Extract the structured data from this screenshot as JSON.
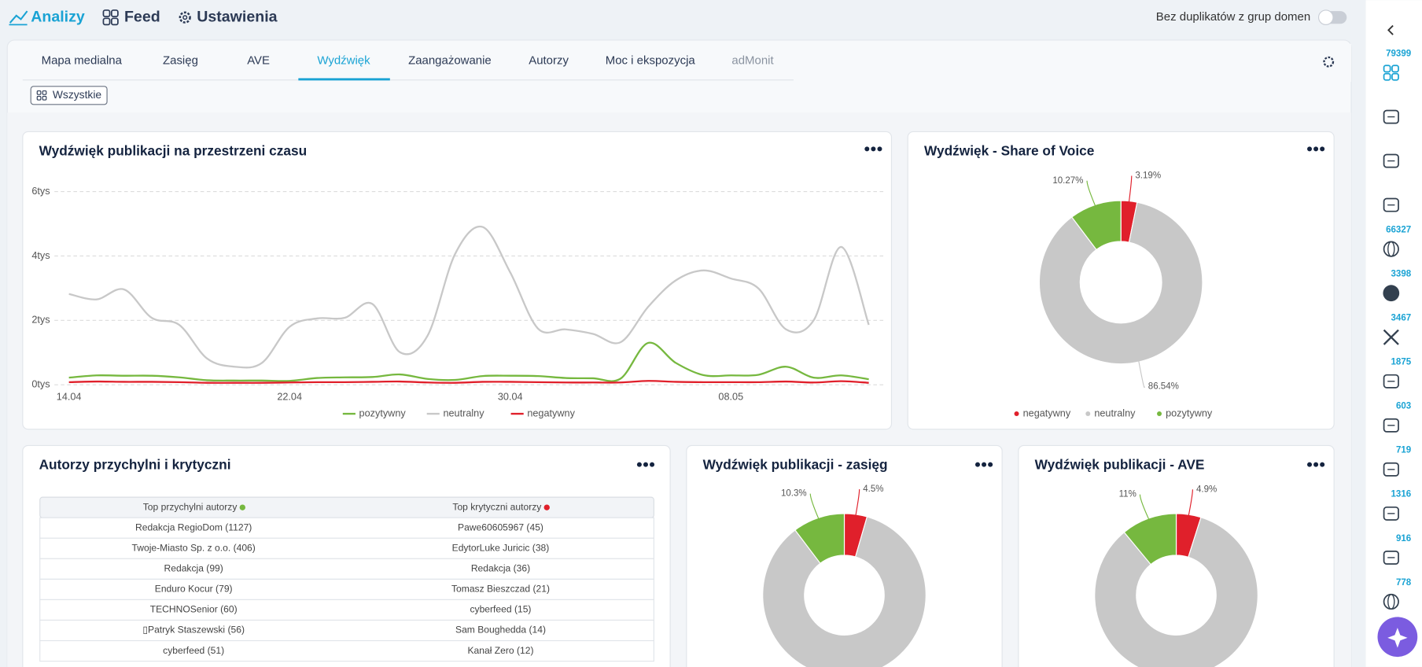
{
  "nav": {
    "items": [
      "Analizy",
      "Feed",
      "Ustawienia"
    ],
    "toggle_label": "Bez duplikatów z grup domen"
  },
  "tabs": {
    "items": [
      "Mapa medialna",
      "Zasięg",
      "AVE",
      "Wydźwięk",
      "Zaangażowanie",
      "Autorzy",
      "Moc i ekspozycja",
      "adMonit"
    ],
    "active": 3
  },
  "filter": "Wszystkie",
  "sidebar": {
    "counts": [
      79399,
      null,
      null,
      null,
      66327,
      3398,
      3467,
      1875,
      603,
      719,
      1316,
      916,
      778
    ]
  },
  "table": {
    "title": "Autorzy przychylni i krytyczni",
    "headers": [
      "Top przychylni autorzy",
      "Top krytyczni autorzy"
    ],
    "rows": [
      [
        "Redakcja RegioDom (1127)",
        "Pawe60605967 (45)"
      ],
      [
        "Twoje-Miasto Sp. z o.o. (406)",
        "EdytorLuke Juricic (38)"
      ],
      [
        "Redakcja (99)",
        "Redakcja (36)"
      ],
      [
        "Enduro Kocur  (79)",
        "Tomasz Bieszczad (21)"
      ],
      [
        "TECHNOSenior (60)",
        "cyberfeed (15)"
      ],
      [
        "▯Patryk Staszewski (56)",
        "Sam Boughedda (14)"
      ],
      [
        "cyberfeed (51)",
        "Kanał Zero (12)"
      ]
    ]
  },
  "chart_data": [
    {
      "type": "line",
      "title": "Wydźwięk publikacji na przestrzeni czasu",
      "categories": [
        "14.04",
        null,
        null,
        null,
        null,
        null,
        null,
        null,
        "22.04",
        null,
        null,
        null,
        null,
        null,
        null,
        null,
        "30.04",
        null,
        null,
        null,
        null,
        null,
        null,
        null,
        "08.05",
        null,
        null,
        null,
        null,
        null
      ],
      "series": [
        {
          "name": "pozytywny",
          "color": "#76b83f",
          "values": [
            220,
            290,
            280,
            280,
            230,
            140,
            130,
            130,
            120,
            210,
            230,
            240,
            320,
            180,
            150,
            270,
            280,
            270,
            210,
            200,
            190,
            1300,
            680,
            300,
            290,
            310,
            560,
            220,
            290,
            170
          ]
        },
        {
          "name": "neutralny",
          "color": "#c8c8c8",
          "values": [
            2820,
            2650,
            2960,
            2080,
            1860,
            820,
            560,
            680,
            1800,
            2060,
            2080,
            2510,
            1010,
            1520,
            4060,
            4900,
            3490,
            1750,
            1720,
            1580,
            1320,
            2420,
            3240,
            3550,
            3300,
            2990,
            1720,
            2000,
            4280,
            1860
          ]
        },
        {
          "name": "negatywny",
          "color": "#e0202b",
          "values": [
            80,
            100,
            90,
            90,
            80,
            60,
            60,
            60,
            70,
            80,
            80,
            90,
            100,
            70,
            60,
            90,
            90,
            80,
            70,
            70,
            70,
            120,
            90,
            80,
            80,
            80,
            100,
            70,
            110,
            60
          ]
        }
      ],
      "ylim": [
        0,
        6000
      ],
      "yticks": [
        {
          "value": 0,
          "label": "0tys"
        },
        {
          "value": 2000,
          "label": "2tys"
        },
        {
          "value": 4000,
          "label": "4tys"
        },
        {
          "value": 6000,
          "label": "6tys"
        }
      ],
      "grid": true,
      "legend": "bottom"
    },
    {
      "type": "donut",
      "title": "Wydźwięk - Share of Voice",
      "categories": [
        "negatywny",
        "neutralny",
        "pozytywny"
      ],
      "values": [
        3.19,
        86.54,
        10.27
      ],
      "value_labels": [
        "3.19%",
        "86.54%",
        "10.27%"
      ],
      "colors": [
        "#e0202b",
        "#c8c8c8",
        "#76b83f"
      ],
      "legend": "bottom"
    },
    {
      "type": "donut",
      "title": "Wydźwięk publikacji - zasięg",
      "values": [
        4.5,
        85.2,
        10.3
      ],
      "value_labels": [
        "4.5%",
        null,
        "10.3%"
      ],
      "colors": [
        "#e0202b",
        "#c8c8c8",
        "#76b83f"
      ]
    },
    {
      "type": "donut",
      "title": "Wydźwięk publikacji - AVE",
      "values": [
        4.9,
        84.1,
        11
      ],
      "value_labels": [
        "4.9%",
        null,
        "11%"
      ],
      "colors": [
        "#e0202b",
        "#c8c8c8",
        "#76b83f"
      ]
    }
  ]
}
